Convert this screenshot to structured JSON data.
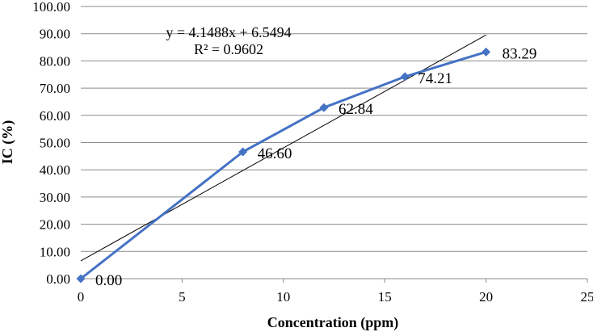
{
  "chart_data": {
    "type": "line",
    "xlabel": "Concentration (ppm)",
    "ylabel": "IC (%)",
    "xlim": [
      0,
      25
    ],
    "ylim": [
      0,
      100
    ],
    "x_ticks": [
      "0",
      "5",
      "10",
      "15",
      "20",
      "25"
    ],
    "y_ticks": [
      "0.00",
      "10.00",
      "20.00",
      "30.00",
      "40.00",
      "50.00",
      "60.00",
      "70.00",
      "80.00",
      "90.00",
      "100.00"
    ],
    "grid": "horizontal",
    "legend": "none",
    "series": [
      {
        "x": [
          0,
          8,
          12,
          16,
          20
        ],
        "y": [
          0.0,
          46.6,
          62.84,
          74.21,
          83.29
        ],
        "data_labels": [
          "0.00",
          "46.60",
          "62.84",
          "74.21",
          "83.29"
        ],
        "color": "#4472C4",
        "marker": "diamond"
      }
    ],
    "trendline": {
      "slope": 4.1488,
      "intercept": 6.5494,
      "x_range": [
        0,
        20
      ],
      "color": "#000000"
    },
    "annotations": [
      "y = 4.1488x + 6.5494",
      "R² = 0.9602"
    ]
  }
}
